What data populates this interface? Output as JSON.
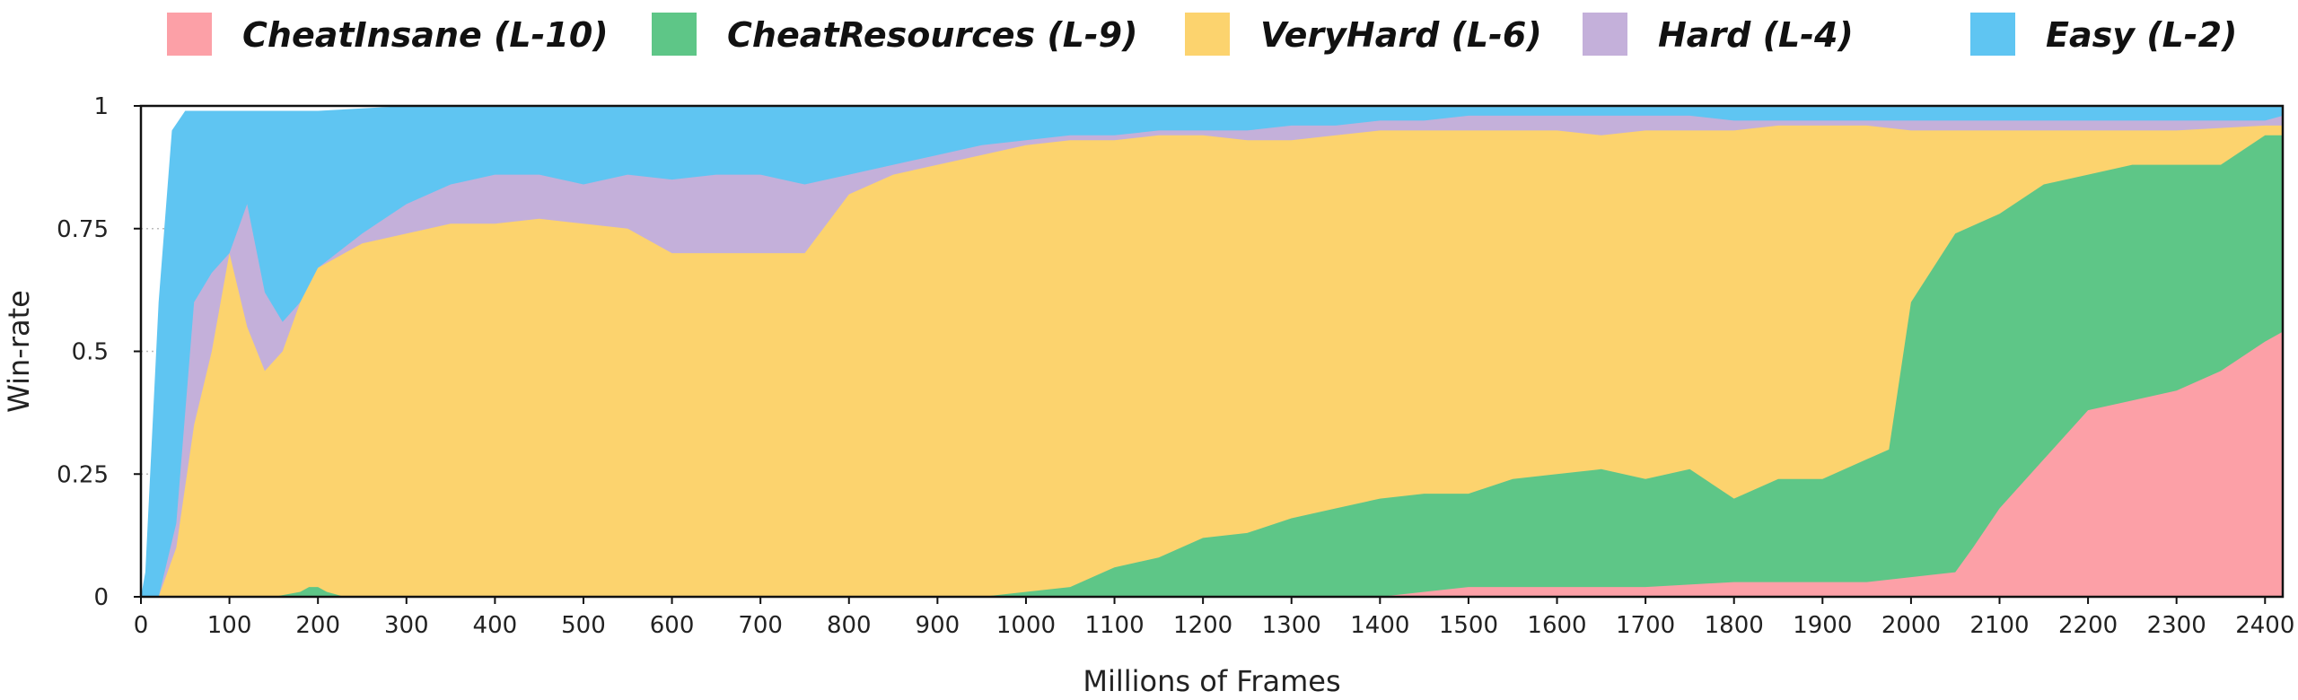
{
  "chart_data": {
    "type": "area",
    "stacked": true,
    "title": "",
    "xlabel": "Millions of Frames",
    "ylabel": "Win-rate",
    "xlim": [
      0,
      2420
    ],
    "ylim": [
      0,
      1
    ],
    "xticks": [
      0,
      100,
      200,
      300,
      400,
      500,
      600,
      700,
      800,
      900,
      1000,
      1100,
      1200,
      1300,
      1400,
      1500,
      1600,
      1700,
      1800,
      1900,
      2000,
      2100,
      2200,
      2300,
      2400
    ],
    "yticks": [
      0,
      0.25,
      0.5,
      0.75,
      1
    ],
    "ytick_labels": [
      "0",
      "0.25",
      "0.5",
      "0.75",
      "1"
    ],
    "grid": "horizontal dotted",
    "legend_position": "top",
    "series": [
      {
        "name": "CheatInsane (L-10)",
        "color": "#FCA0A7",
        "points": [
          [
            0,
            0
          ],
          [
            1400,
            0
          ],
          [
            1450,
            0.01
          ],
          [
            1500,
            0.02
          ],
          [
            1600,
            0.02
          ],
          [
            1700,
            0.02
          ],
          [
            1800,
            0.03
          ],
          [
            1900,
            0.03
          ],
          [
            1950,
            0.03
          ],
          [
            2000,
            0.04
          ],
          [
            2050,
            0.05
          ],
          [
            2070,
            0.1
          ],
          [
            2100,
            0.18
          ],
          [
            2150,
            0.28
          ],
          [
            2200,
            0.38
          ],
          [
            2250,
            0.4
          ],
          [
            2300,
            0.42
          ],
          [
            2350,
            0.46
          ],
          [
            2400,
            0.52
          ],
          [
            2420,
            0.54
          ]
        ]
      },
      {
        "name": "CheatResources (L-9)",
        "color": "#5EC687",
        "points": [
          [
            0,
            0
          ],
          [
            150,
            0
          ],
          [
            180,
            0.01
          ],
          [
            190,
            0.02
          ],
          [
            200,
            0.02
          ],
          [
            210,
            0.01
          ],
          [
            230,
            0
          ],
          [
            500,
            0
          ],
          [
            700,
            0
          ],
          [
            950,
            0
          ],
          [
            1000,
            0.01
          ],
          [
            1050,
            0.02
          ],
          [
            1100,
            0.06
          ],
          [
            1150,
            0.08
          ],
          [
            1200,
            0.12
          ],
          [
            1250,
            0.13
          ],
          [
            1300,
            0.16
          ],
          [
            1350,
            0.18
          ],
          [
            1400,
            0.2
          ],
          [
            1450,
            0.21
          ],
          [
            1500,
            0.21
          ],
          [
            1550,
            0.24
          ],
          [
            1600,
            0.25
          ],
          [
            1650,
            0.26
          ],
          [
            1700,
            0.24
          ],
          [
            1750,
            0.26
          ],
          [
            1800,
            0.2
          ],
          [
            1850,
            0.24
          ],
          [
            1900,
            0.24
          ],
          [
            1950,
            0.28
          ],
          [
            1975,
            0.3
          ],
          [
            2000,
            0.6
          ],
          [
            2050,
            0.74
          ],
          [
            2100,
            0.78
          ],
          [
            2150,
            0.84
          ],
          [
            2200,
            0.86
          ],
          [
            2250,
            0.88
          ],
          [
            2300,
            0.88
          ],
          [
            2350,
            0.88
          ],
          [
            2400,
            0.94
          ],
          [
            2420,
            0.94
          ]
        ]
      },
      {
        "name": "VeryHard (L-6)",
        "color": "#FCD36E",
        "points": [
          [
            0,
            0
          ],
          [
            20,
            0
          ],
          [
            40,
            0.1
          ],
          [
            60,
            0.35
          ],
          [
            80,
            0.5
          ],
          [
            100,
            0.7
          ],
          [
            120,
            0.55
          ],
          [
            140,
            0.46
          ],
          [
            160,
            0.5
          ],
          [
            180,
            0.6
          ],
          [
            200,
            0.67
          ],
          [
            250,
            0.72
          ],
          [
            300,
            0.74
          ],
          [
            350,
            0.76
          ],
          [
            400,
            0.76
          ],
          [
            450,
            0.77
          ],
          [
            500,
            0.76
          ],
          [
            550,
            0.75
          ],
          [
            600,
            0.7
          ],
          [
            650,
            0.7
          ],
          [
            700,
            0.7
          ],
          [
            750,
            0.7
          ],
          [
            800,
            0.82
          ],
          [
            850,
            0.86
          ],
          [
            900,
            0.88
          ],
          [
            950,
            0.9
          ],
          [
            1000,
            0.92
          ],
          [
            1050,
            0.93
          ],
          [
            1100,
            0.93
          ],
          [
            1150,
            0.94
          ],
          [
            1200,
            0.94
          ],
          [
            1250,
            0.93
          ],
          [
            1300,
            0.93
          ],
          [
            1350,
            0.94
          ],
          [
            1400,
            0.95
          ],
          [
            1450,
            0.95
          ],
          [
            1500,
            0.95
          ],
          [
            1550,
            0.95
          ],
          [
            1600,
            0.95
          ],
          [
            1650,
            0.94
          ],
          [
            1700,
            0.95
          ],
          [
            1750,
            0.95
          ],
          [
            1800,
            0.95
          ],
          [
            1850,
            0.96
          ],
          [
            1900,
            0.96
          ],
          [
            1950,
            0.96
          ],
          [
            2000,
            0.95
          ],
          [
            2100,
            0.95
          ],
          [
            2200,
            0.95
          ],
          [
            2300,
            0.95
          ],
          [
            2400,
            0.96
          ],
          [
            2420,
            0.96
          ]
        ]
      },
      {
        "name": "Hard (L-4)",
        "color": "#C4B0DA",
        "points": [
          [
            0,
            0
          ],
          [
            20,
            0
          ],
          [
            40,
            0.15
          ],
          [
            60,
            0.6
          ],
          [
            80,
            0.66
          ],
          [
            100,
            0.7
          ],
          [
            120,
            0.8
          ],
          [
            140,
            0.62
          ],
          [
            160,
            0.56
          ],
          [
            180,
            0.6
          ],
          [
            200,
            0.67
          ],
          [
            250,
            0.74
          ],
          [
            300,
            0.8
          ],
          [
            350,
            0.84
          ],
          [
            400,
            0.86
          ],
          [
            450,
            0.86
          ],
          [
            500,
            0.84
          ],
          [
            550,
            0.86
          ],
          [
            600,
            0.85
          ],
          [
            650,
            0.86
          ],
          [
            700,
            0.86
          ],
          [
            750,
            0.84
          ],
          [
            800,
            0.86
          ],
          [
            850,
            0.88
          ],
          [
            900,
            0.9
          ],
          [
            950,
            0.92
          ],
          [
            1000,
            0.93
          ],
          [
            1050,
            0.94
          ],
          [
            1100,
            0.94
          ],
          [
            1150,
            0.95
          ],
          [
            1200,
            0.95
          ],
          [
            1250,
            0.95
          ],
          [
            1300,
            0.96
          ],
          [
            1350,
            0.96
          ],
          [
            1400,
            0.97
          ],
          [
            1450,
            0.97
          ],
          [
            1500,
            0.98
          ],
          [
            1550,
            0.98
          ],
          [
            1600,
            0.98
          ],
          [
            1650,
            0.98
          ],
          [
            1700,
            0.98
          ],
          [
            1750,
            0.98
          ],
          [
            1800,
            0.97
          ],
          [
            1850,
            0.97
          ],
          [
            1900,
            0.97
          ],
          [
            1950,
            0.97
          ],
          [
            2000,
            0.97
          ],
          [
            2100,
            0.97
          ],
          [
            2200,
            0.97
          ],
          [
            2300,
            0.97
          ],
          [
            2400,
            0.97
          ],
          [
            2420,
            0.98
          ]
        ]
      },
      {
        "name": "Easy (L-2)",
        "color": "#5FC5F2",
        "points": [
          [
            0,
            0
          ],
          [
            5,
            0.05
          ],
          [
            20,
            0.6
          ],
          [
            35,
            0.95
          ],
          [
            50,
            0.99
          ],
          [
            100,
            0.99
          ],
          [
            150,
            0.99
          ],
          [
            200,
            0.99
          ],
          [
            300,
            1
          ],
          [
            400,
            1
          ],
          [
            500,
            1
          ],
          [
            600,
            1
          ],
          [
            700,
            1
          ],
          [
            800,
            1
          ],
          [
            900,
            1
          ],
          [
            1000,
            1
          ],
          [
            1100,
            1
          ],
          [
            1200,
            1
          ],
          [
            1300,
            1
          ],
          [
            1400,
            1
          ],
          [
            1500,
            1
          ],
          [
            1600,
            1
          ],
          [
            1700,
            1
          ],
          [
            1800,
            1
          ],
          [
            1900,
            1
          ],
          [
            2000,
            1
          ],
          [
            2100,
            1
          ],
          [
            2200,
            1
          ],
          [
            2300,
            1
          ],
          [
            2400,
            1
          ],
          [
            2420,
            1
          ]
        ]
      }
    ]
  }
}
